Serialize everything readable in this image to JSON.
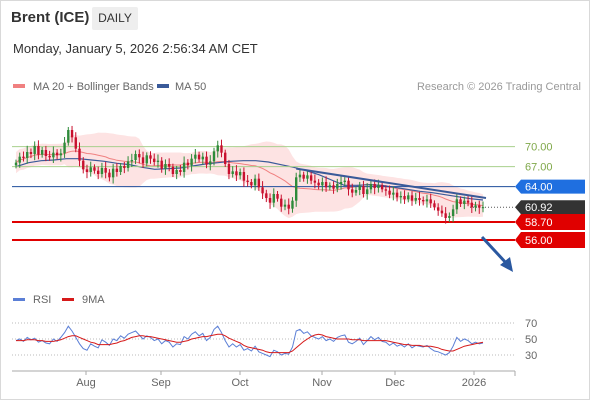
{
  "header": {
    "title": "Brent (ICE)",
    "period": "DAILY",
    "datetime": "Monday, January 5, 2026 2:56:34 AM CET"
  },
  "legend": {
    "bollinger": "MA 20 + Bollinger Bands",
    "ma50": "MA 50",
    "copyright": "Research © 2026 Trading Central",
    "rsi": "RSI",
    "rsi_ma": "9MA"
  },
  "colors": {
    "candle_up": "#2e8b3a",
    "candle_down": "#c8102e",
    "bollinger_fill": "#fde3e3",
    "ma20": "#f08080",
    "ma50": "#3a5a99",
    "resistance": "#a8d08d",
    "pivot": "#1f4e9c",
    "support": "#e00000",
    "last_price": "#333333",
    "rsi": "#5b7fd6",
    "rsi_ma": "#d61a1a",
    "trendline": "#3a5a99",
    "arrow": "#2a58a0"
  },
  "chart_data": [
    {
      "type": "candlestick",
      "x_ticks": [
        "Aug",
        "Sep",
        "Oct",
        "Nov",
        "Dec",
        "2026"
      ],
      "horizontal_levels": [
        {
          "value": 70.0,
          "label": "70.00",
          "kind": "resistance"
        },
        {
          "value": 67.0,
          "label": "67.00",
          "kind": "resistance"
        },
        {
          "value": 64.0,
          "label": "64.00",
          "kind": "pivot"
        },
        {
          "value": 60.92,
          "label": "60.92",
          "kind": "last"
        },
        {
          "value": 58.7,
          "label": "58.70",
          "kind": "support"
        },
        {
          "value": 56.0,
          "label": "56.00",
          "kind": "support"
        }
      ],
      "ylim": [
        48.5,
        77.0
      ],
      "closes": [
        67.6,
        68.5,
        68.3,
        69.2,
        68.9,
        70.1,
        68.8,
        69.5,
        68.6,
        68.4,
        69.1,
        68.7,
        69.0,
        70.6,
        72.5,
        71.4,
        69.7,
        67.9,
        66.6,
        66.2,
        66.9,
        66.4,
        65.9,
        66.8,
        66.1,
        65.4,
        66.7,
        66.2,
        67.1,
        66.8,
        67.8,
        68.0,
        68.9,
        68.4,
        67.5,
        68.7,
        68.2,
        67.7,
        67.9,
        66.7,
        67.4,
        67.0,
        65.9,
        66.5,
        66.2,
        67.6,
        67.2,
        68.2,
        68.8,
        68.1,
        68.5,
        67.3,
        67.8,
        69.3,
        70.2,
        69.1,
        67.4,
        65.9,
        66.3,
        65.7,
        66.2,
        64.9,
        64.7,
        64.2,
        65.2,
        63.9,
        63.0,
        62.3,
        61.6,
        62.9,
        62.2,
        61.0,
        61.3,
        60.7,
        61.9,
        65.4,
        65.8,
        65.2,
        65.7,
        64.9,
        64.6,
        64.2,
        64.7,
        63.9,
        64.2,
        63.7,
        64.4,
        64.7,
        64.9,
        63.6,
        63.1,
        63.5,
        64.1,
        62.9,
        63.6,
        64.4,
        63.8,
        64.2,
        63.6,
        63.4,
        62.8,
        63.1,
        62.4,
        62.6,
        62.1,
        62.7,
        61.9,
        62.3,
        62.0,
        61.8,
        62.1,
        61.5,
        60.9,
        60.4,
        60.0,
        59.3,
        59.6,
        60.6,
        62.1,
        61.4,
        61.9,
        61.6,
        60.9,
        61.2,
        60.85,
        60.92
      ],
      "ma50_approx": [
        67.0,
        67.6,
        67.9,
        68.0,
        68.2,
        68.2,
        68.0,
        67.8,
        67.5,
        67.3,
        66.9,
        66.6,
        66.7,
        66.8,
        67.1,
        67.4,
        67.6,
        67.8,
        67.9,
        67.9,
        67.7,
        67.3,
        66.9,
        66.4,
        65.8,
        65.0,
        64.2,
        64.2,
        64.3,
        64.2,
        63.9,
        63.6,
        63.3,
        63.1,
        62.8,
        62.5,
        62.2,
        62.0
      ],
      "trendline": {
        "from_close_index": 75,
        "to_close_index": 125,
        "from_value": 66.7,
        "to_value": 62.3
      }
    },
    {
      "type": "line",
      "name": "RSI",
      "y_ticks": [
        70,
        50,
        30
      ],
      "ylim": [
        20,
        80
      ],
      "rsi": [
        48,
        50,
        47,
        52,
        49,
        51,
        46,
        48,
        45,
        44,
        50,
        47,
        52,
        58,
        66,
        60,
        52,
        44,
        38,
        36,
        44,
        41,
        39,
        49,
        46,
        42,
        50,
        48,
        54,
        51,
        56,
        58,
        60,
        55,
        50,
        54,
        52,
        48,
        50,
        44,
        48,
        46,
        40,
        44,
        43,
        53,
        50,
        56,
        59,
        54,
        57,
        48,
        52,
        62,
        66,
        58,
        48,
        40,
        44,
        40,
        43,
        36,
        38,
        35,
        41,
        34,
        32,
        30,
        28,
        36,
        34,
        30,
        32,
        31,
        40,
        60,
        62,
        57,
        59,
        54,
        52,
        50,
        53,
        48,
        50,
        47,
        52,
        54,
        55,
        46,
        44,
        47,
        51,
        43,
        48,
        53,
        49,
        52,
        47,
        46,
        42,
        45,
        41,
        43,
        40,
        44,
        39,
        42,
        41,
        40,
        42,
        38,
        35,
        34,
        32,
        30,
        33,
        41,
        52,
        47,
        50,
        48,
        44,
        46,
        44,
        45
      ],
      "ma9": [
        48,
        48,
        48,
        49,
        49,
        49,
        48,
        48,
        47,
        47,
        47,
        48,
        49,
        51,
        53,
        54,
        54,
        52,
        50,
        48,
        46,
        45,
        43,
        43,
        43,
        43,
        44,
        45,
        47,
        48,
        50,
        52,
        53,
        54,
        54,
        53,
        53,
        52,
        51,
        50,
        49,
        48,
        47,
        46,
        46,
        47,
        48,
        50,
        51,
        52,
        53,
        53,
        54,
        55,
        56,
        56,
        54,
        51,
        49,
        47,
        45,
        42,
        40,
        39,
        38,
        37,
        36,
        34,
        33,
        33,
        33,
        33,
        33,
        33,
        35,
        39,
        43,
        47,
        50,
        53,
        55,
        56,
        55,
        53,
        52,
        51,
        50,
        50,
        50,
        50,
        49,
        49,
        49,
        48,
        48,
        48,
        48,
        48,
        48,
        48,
        47,
        46,
        45,
        44,
        43,
        43,
        42,
        42,
        42,
        41,
        41,
        41,
        40,
        39,
        37,
        36,
        35,
        35,
        37,
        39,
        41,
        42,
        43,
        44,
        45,
        46
      ]
    }
  ]
}
